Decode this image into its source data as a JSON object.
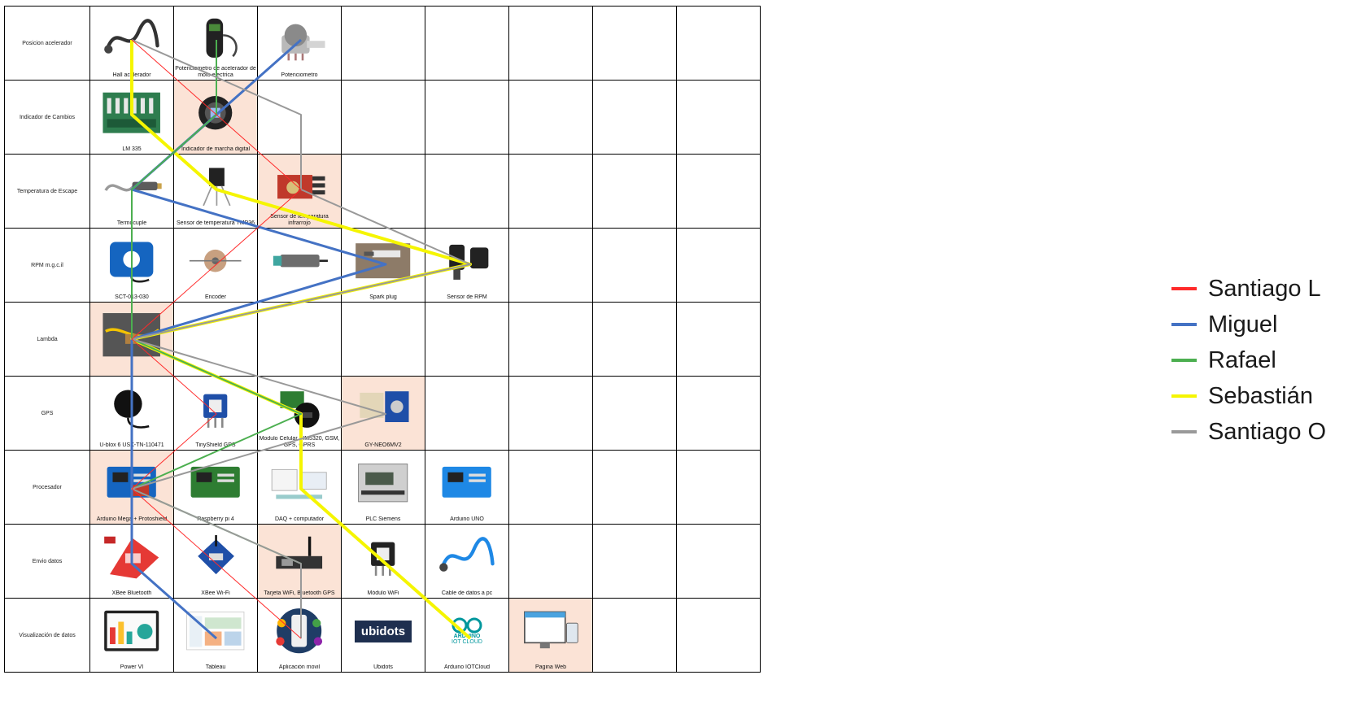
{
  "rows": [
    {
      "label": "Posicion acelerador",
      "cells": [
        {
          "caption": "Hall acelerador",
          "icon": "hall-sensor-icon",
          "selected": false
        },
        {
          "caption": "Potenciometro de acelerador de moto electrica",
          "icon": "throttle-potentiometer-icon",
          "selected": false
        },
        {
          "caption": "Potenciometro",
          "icon": "potentiometer-icon",
          "selected": false
        }
      ]
    },
    {
      "label": "Indicador de Cambios",
      "cells": [
        {
          "caption": "LM 335",
          "icon": "lm335-board-icon",
          "selected": false
        },
        {
          "caption": "Indicador de marcha digital",
          "icon": "gear-indicator-icon",
          "selected": true
        }
      ]
    },
    {
      "label": "Temperatura de Escape",
      "cells": [
        {
          "caption": "Termocuple",
          "icon": "thermocouple-icon",
          "selected": false
        },
        {
          "caption": "Sensor de temperatura TMP36",
          "icon": "tmp36-icon",
          "selected": false
        },
        {
          "caption": "Sensor de temperatura infrarrojo",
          "icon": "infrared-sensor-icon",
          "selected": true
        }
      ]
    },
    {
      "label": "RPM m.g.c.il",
      "cells": [
        {
          "caption": "SCT-013-030",
          "icon": "current-clamp-icon",
          "selected": false
        },
        {
          "caption": "Encoder",
          "icon": "encoder-icon",
          "selected": false
        },
        {
          "caption": "",
          "icon": "inductive-sensor-icon",
          "selected": false
        },
        {
          "caption": "Spark plug",
          "icon": "spark-plug-icon",
          "selected": false
        },
        {
          "caption": "Sensor de RPM",
          "icon": "rpm-sensor-icon",
          "selected": false
        }
      ]
    },
    {
      "label": "Lambda",
      "cells": [
        {
          "caption": "",
          "icon": "lambda-sensor-icon",
          "selected": true
        }
      ]
    },
    {
      "label": "GPS",
      "cells": [
        {
          "caption": "U-blox 6 USX-TN-110471",
          "icon": "gps-antenna-icon",
          "selected": false
        },
        {
          "caption": "TinyShield GPS",
          "icon": "tinyshield-gps-icon",
          "selected": false
        },
        {
          "caption": "Modulo Celular SIM5320, GSM, GPS, GPRS",
          "icon": "cellular-module-icon",
          "selected": false
        },
        {
          "caption": "GY-NEO6MV2",
          "icon": "gps-module-icon",
          "selected": true
        }
      ]
    },
    {
      "label": "Procesador",
      "cells": [
        {
          "caption": "Arduino Mega + Protoshield",
          "icon": "arduino-mega-icon",
          "selected": true
        },
        {
          "caption": "Raspberry pi 4",
          "icon": "raspberry-pi-icon",
          "selected": false
        },
        {
          "caption": "DAQ + computador",
          "icon": "daq-icon",
          "selected": false
        },
        {
          "caption": "PLC Siemens",
          "icon": "plc-icon",
          "selected": false
        },
        {
          "caption": "Arduino UNO",
          "icon": "arduino-uno-icon",
          "selected": false
        }
      ]
    },
    {
      "label": "Envio datos",
      "cells": [
        {
          "caption": "XBee Bluetooth",
          "icon": "xbee-bluetooth-icon",
          "selected": false
        },
        {
          "caption": "XBee Wi-Fi",
          "icon": "xbee-wifi-icon",
          "selected": false
        },
        {
          "caption": "Tarjeta WiFi, Bluetooth GPS",
          "icon": "wifi-bt-board-icon",
          "selected": true
        },
        {
          "caption": "Módulo WiFi",
          "icon": "wifi-module-icon",
          "selected": false
        },
        {
          "caption": "Cable de datos a pc",
          "icon": "usb-cable-icon",
          "selected": false
        }
      ]
    },
    {
      "label": "Visualización de datos",
      "cells": [
        {
          "caption": "Power VI",
          "icon": "power-bi-icon",
          "selected": false
        },
        {
          "caption": "Tableau",
          "icon": "tableau-icon",
          "selected": false
        },
        {
          "caption": "Aplicación movil",
          "icon": "mobile-app-icon",
          "selected": false
        },
        {
          "caption": "Ubidots",
          "icon": "ubidots-logo",
          "selected": false
        },
        {
          "caption": "Arduino IOTCloud",
          "icon": "arduino-cloud-logo",
          "selected": false
        },
        {
          "caption": "Pagina Web",
          "icon": "web-page-icon",
          "selected": true
        }
      ]
    }
  ],
  "logos": {
    "ubidots": "ubidots",
    "arduino_1": "ARDUINO",
    "arduino_2": "IOT CLOUD"
  },
  "legend": [
    {
      "name": "Santiago L",
      "color": "#ff2a2a"
    },
    {
      "name": "Miguel",
      "color": "#4472c4"
    },
    {
      "name": "Rafael",
      "color": "#4caf50"
    },
    {
      "name": "Sebastián",
      "color": "#f5f500"
    },
    {
      "name": "Santiago O",
      "color": "#999999"
    }
  ],
  "routes": [
    {
      "person": "Santiago L",
      "path": [
        [
          0,
          0
        ],
        [
          1,
          1
        ],
        [
          2,
          2
        ],
        [
          3,
          1
        ],
        [
          4,
          0
        ],
        [
          5,
          1
        ],
        [
          6,
          0
        ],
        [
          7,
          1
        ],
        [
          8,
          2
        ]
      ]
    },
    {
      "person": "Miguel",
      "path": [
        [
          0,
          2
        ],
        [
          1,
          1
        ],
        [
          2,
          0
        ],
        [
          3,
          3
        ],
        [
          4,
          0
        ],
        [
          5,
          0
        ],
        [
          6,
          0
        ],
        [
          7,
          0
        ],
        [
          8,
          1
        ]
      ]
    },
    {
      "person": "Rafael",
      "path": [
        [
          0,
          1
        ],
        [
          1,
          1
        ],
        [
          2,
          0
        ],
        [
          3,
          0
        ],
        [
          4,
          0
        ],
        [
          5,
          2
        ],
        [
          6,
          0
        ],
        [
          7,
          2
        ],
        [
          8,
          2
        ]
      ]
    },
    {
      "person": "Sebastián",
      "path": [
        [
          0,
          0
        ],
        [
          1,
          0
        ],
        [
          2,
          1
        ],
        [
          3,
          4
        ],
        [
          4,
          0
        ],
        [
          5,
          2
        ],
        [
          6,
          2
        ],
        [
          7,
          3
        ],
        [
          8,
          4
        ]
      ]
    },
    {
      "person": "Santiago O",
      "path": [
        [
          0,
          0
        ],
        [
          1,
          2
        ],
        [
          2,
          2
        ],
        [
          3,
          4
        ],
        [
          4,
          0
        ],
        [
          5,
          3
        ],
        [
          6,
          0
        ],
        [
          7,
          2
        ],
        [
          8,
          2
        ]
      ]
    }
  ]
}
